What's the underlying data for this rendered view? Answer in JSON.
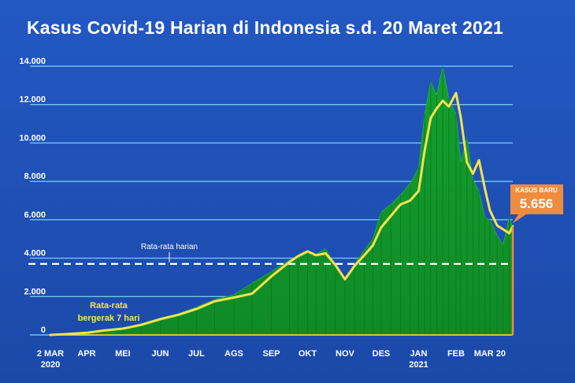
{
  "chart_data": {
    "type": "area",
    "title": "Kasus Covid-19 Harian di Indonesia s.d. 20 Maret 2021",
    "ylim": [
      0,
      14000
    ],
    "y_ticks": [
      {
        "value": 0,
        "label": "0"
      },
      {
        "value": 2000,
        "label": "2.000"
      },
      {
        "value": 4000,
        "label": "4.000"
      },
      {
        "value": 6000,
        "label": "6.000"
      },
      {
        "value": 8000,
        "label": "8.000"
      },
      {
        "value": 10000,
        "label": "10.000"
      },
      {
        "value": 12000,
        "label": "12.000"
      },
      {
        "value": 14000,
        "label": "14.000"
      }
    ],
    "x_ticks": [
      {
        "value": 0,
        "label": "2 MAR",
        "sub": "2020"
      },
      {
        "value": 30,
        "label": "APR",
        "sub": ""
      },
      {
        "value": 60,
        "label": "MEI",
        "sub": ""
      },
      {
        "value": 91,
        "label": "JUN",
        "sub": ""
      },
      {
        "value": 121,
        "label": "JUL",
        "sub": ""
      },
      {
        "value": 152,
        "label": "AGS",
        "sub": ""
      },
      {
        "value": 183,
        "label": "SEP",
        "sub": ""
      },
      {
        "value": 213,
        "label": "OKT",
        "sub": ""
      },
      {
        "value": 244,
        "label": "NOV",
        "sub": ""
      },
      {
        "value": 274,
        "label": "DES",
        "sub": ""
      },
      {
        "value": 305,
        "label": "JAN",
        "sub": "2021"
      },
      {
        "value": 336,
        "label": "FEB",
        "sub": ""
      },
      {
        "value": 364,
        "label": "MAR 20",
        "sub": ""
      }
    ],
    "xlim": [
      0,
      383
    ],
    "daily_avg": 3700,
    "daily_avg_label": "Rata-rata harian",
    "moving_avg_label": [
      "Rata-rata",
      "bergerak 7 hari"
    ],
    "series": [
      {
        "name": "Kasus harian",
        "x": [
          0,
          15,
          30,
          45,
          60,
          75,
          91,
          106,
          121,
          136,
          152,
          167,
          183,
          198,
          205,
          213,
          220,
          228,
          236,
          244,
          252,
          260,
          267,
          274,
          282,
          290,
          298,
          305,
          310,
          315,
          320,
          325,
          330,
          336,
          340,
          345,
          350,
          355,
          360,
          364,
          370,
          375,
          380,
          383
        ],
        "values": [
          2,
          60,
          130,
          270,
          360,
          580,
          880,
          1100,
          1450,
          1850,
          2100,
          2700,
          3300,
          3900,
          4000,
          4300,
          4200,
          4500,
          3600,
          2900,
          3700,
          4400,
          5000,
          6400,
          6800,
          7300,
          7900,
          8700,
          11500,
          13200,
          12500,
          14000,
          12300,
          11500,
          9000,
          10300,
          8100,
          7500,
          6100,
          6000,
          5200,
          4700,
          6100,
          5656
        ]
      },
      {
        "name": "Rata-rata bergerak 7 hari",
        "x": [
          0,
          15,
          30,
          45,
          60,
          75,
          91,
          106,
          121,
          136,
          152,
          167,
          183,
          198,
          205,
          213,
          220,
          228,
          236,
          244,
          252,
          260,
          267,
          274,
          282,
          290,
          298,
          305,
          310,
          315,
          320,
          325,
          330,
          336,
          340,
          345,
          350,
          355,
          360,
          364,
          370,
          375,
          380,
          383
        ],
        "values": [
          2,
          50,
          110,
          240,
          330,
          520,
          820,
          1050,
          1350,
          1750,
          1950,
          2150,
          3050,
          3800,
          4100,
          4350,
          4150,
          4250,
          3650,
          2900,
          3600,
          4150,
          4650,
          5600,
          6200,
          6800,
          7000,
          7500,
          9600,
          11300,
          11800,
          12200,
          11900,
          12600,
          11300,
          9000,
          8400,
          9100,
          7600,
          6500,
          5700,
          5500,
          5300,
          5656
        ]
      }
    ],
    "callout": {
      "label": "KASUS BARU",
      "value": "5.656",
      "x": 383,
      "y": 5656
    },
    "colors": {
      "area": "#15992f",
      "line": "#f3e34d",
      "gridline": "#6ec7ec",
      "dashed": "#ffffff",
      "callout": "#f18c3f"
    }
  }
}
